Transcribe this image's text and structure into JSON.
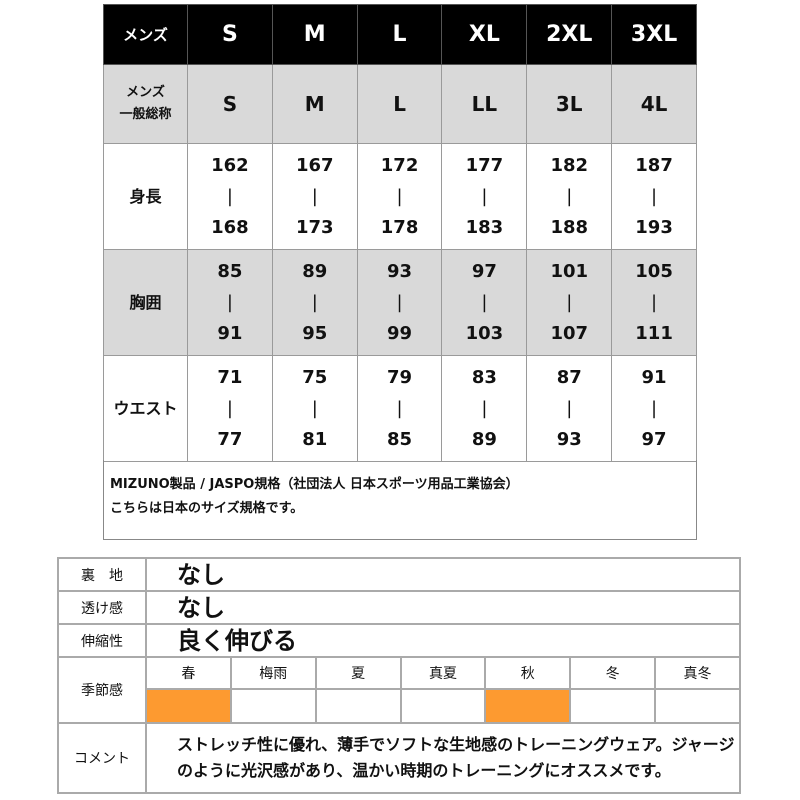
{
  "size_table": {
    "header": {
      "label": "メンズ",
      "sizes": [
        "S",
        "M",
        "L",
        "XL",
        "2XL",
        "3XL"
      ]
    },
    "general": {
      "label_line1": "メンズ",
      "label_line2": "一般総称",
      "values": [
        "S",
        "M",
        "L",
        "LL",
        "3L",
        "4L"
      ]
    },
    "rows": [
      {
        "label": "身長",
        "min": [
          "162",
          "167",
          "172",
          "177",
          "182",
          "187"
        ],
        "max": [
          "168",
          "173",
          "178",
          "183",
          "188",
          "193"
        ]
      },
      {
        "label": "胸囲",
        "min": [
          "85",
          "89",
          "93",
          "97",
          "101",
          "105"
        ],
        "max": [
          "91",
          "95",
          "99",
          "103",
          "107",
          "111"
        ]
      },
      {
        "label": "ウエスト",
        "min": [
          "71",
          "75",
          "79",
          "83",
          "87",
          "91"
        ],
        "max": [
          "77",
          "81",
          "85",
          "89",
          "93",
          "97"
        ]
      }
    ],
    "separator": "|"
  },
  "note": {
    "line1": "MIZUNO製品 / JASPO規格（社団法人 日本スポーツ用品工業協会）",
    "line2": "こちらは日本のサイズ規格です。"
  },
  "spec": {
    "lining": {
      "label": "裏　地",
      "value": "なし"
    },
    "transparency": {
      "label": "透け感",
      "value": "なし"
    },
    "stretch": {
      "label": "伸縮性",
      "value": "良く伸びる"
    },
    "season": {
      "label": "季節感",
      "items": [
        {
          "name": "春",
          "active": true
        },
        {
          "name": "梅雨",
          "active": false
        },
        {
          "name": "夏",
          "active": false
        },
        {
          "name": "真夏",
          "active": false
        },
        {
          "name": "秋",
          "active": true
        },
        {
          "name": "冬",
          "active": false
        },
        {
          "name": "真冬",
          "active": false
        }
      ],
      "active_color": "#fd9a30"
    },
    "comment": {
      "label": "コメント",
      "value": "ストレッチ性に優れ、薄手でソフトな生地感のトレーニングウェア。ジャージのように光沢感があり、温かい時期のトレーニングにオススメです。"
    }
  }
}
